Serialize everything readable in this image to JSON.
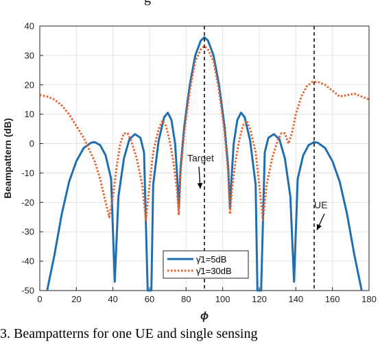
{
  "page": {
    "title_fragment": "g",
    "caption_fragment": "3.  Beampatterns for one UE and single sensing"
  },
  "colors": {
    "series_5dB": "#1f6fb0",
    "series_30dB": "#e8602c",
    "axis": "#000000",
    "grid": "#e3e3e3"
  },
  "chart_data": {
    "type": "line",
    "xlabel": "ϕ",
    "ylabel": "Beampattern (dB)",
    "xlim": [
      0,
      180
    ],
    "ylim": [
      -50,
      40
    ],
    "xticks": [
      0,
      20,
      40,
      60,
      80,
      100,
      120,
      140,
      160,
      180
    ],
    "yticks": [
      40,
      30,
      20,
      10,
      0,
      -10,
      -20,
      -30,
      -40,
      -50
    ],
    "grid": true,
    "legend_position": "bottom-center",
    "vlines": [
      90,
      150
    ],
    "annotations": [
      {
        "text": "Target",
        "x": 90,
        "y": -6
      },
      {
        "text": "UE",
        "x": 150,
        "y": -22
      }
    ],
    "series": [
      {
        "name": "γ̄1=5dB",
        "style": "solid",
        "points": [
          [
            4,
            -50
          ],
          [
            8,
            -38
          ],
          [
            12,
            -24
          ],
          [
            16,
            -13
          ],
          [
            20,
            -6
          ],
          [
            24,
            -1.5
          ],
          [
            28,
            0.3
          ],
          [
            30,
            0.5
          ],
          [
            33,
            -0.5
          ],
          [
            36,
            -4
          ],
          [
            39,
            -12
          ],
          [
            41,
            -47
          ],
          [
            43,
            -18
          ],
          [
            46,
            -5
          ],
          [
            49,
            1.5
          ],
          [
            52,
            3.2
          ],
          [
            55,
            2
          ],
          [
            57,
            -3
          ],
          [
            59,
            -50
          ],
          [
            60,
            -50
          ],
          [
            61,
            -50
          ],
          [
            62,
            -14
          ],
          [
            65,
            1
          ],
          [
            68,
            9
          ],
          [
            70,
            10.5
          ],
          [
            72,
            8
          ],
          [
            74,
            0
          ],
          [
            75,
            -10
          ],
          [
            76,
            -22
          ],
          [
            77,
            -8
          ],
          [
            79,
            6
          ],
          [
            82,
            20
          ],
          [
            85,
            30
          ],
          [
            88,
            35
          ],
          [
            90,
            36.2
          ],
          [
            92,
            35
          ],
          [
            95,
            30
          ],
          [
            98,
            20
          ],
          [
            101,
            6
          ],
          [
            103,
            -8
          ],
          [
            104,
            -22
          ],
          [
            105,
            -10
          ],
          [
            106,
            0
          ],
          [
            108,
            8
          ],
          [
            110,
            10.5
          ],
          [
            112,
            9
          ],
          [
            115,
            1
          ],
          [
            118,
            -14
          ],
          [
            119,
            -50
          ],
          [
            120,
            -50
          ],
          [
            121,
            -50
          ],
          [
            123,
            -3
          ],
          [
            125,
            2
          ],
          [
            128,
            3.2
          ],
          [
            131,
            1.5
          ],
          [
            134,
            -5
          ],
          [
            137,
            -18
          ],
          [
            139,
            -47
          ],
          [
            141,
            -12
          ],
          [
            144,
            -4
          ],
          [
            147,
            -0.5
          ],
          [
            150,
            0.5
          ],
          [
            152,
            0.3
          ],
          [
            156,
            -1.5
          ],
          [
            160,
            -6
          ],
          [
            164,
            -13
          ],
          [
            168,
            -24
          ],
          [
            172,
            -38
          ],
          [
            176,
            -50
          ]
        ]
      },
      {
        "name": "γ̄1=30dB",
        "style": "dotted",
        "points": [
          [
            0,
            16.5
          ],
          [
            4,
            16
          ],
          [
            8,
            15
          ],
          [
            12,
            13
          ],
          [
            16,
            10
          ],
          [
            20,
            6
          ],
          [
            24,
            2
          ],
          [
            27,
            -2
          ],
          [
            30,
            -6
          ],
          [
            33,
            -12
          ],
          [
            36,
            -20
          ],
          [
            38,
            -25
          ],
          [
            40,
            -18
          ],
          [
            42,
            -8
          ],
          [
            44,
            0
          ],
          [
            46,
            3.5
          ],
          [
            48,
            3.5
          ],
          [
            50,
            1
          ],
          [
            53,
            -5
          ],
          [
            56,
            -14
          ],
          [
            58,
            -26
          ],
          [
            60,
            -14
          ],
          [
            62,
            -3
          ],
          [
            65,
            5
          ],
          [
            67,
            7.8
          ],
          [
            69,
            6
          ],
          [
            71,
            1
          ],
          [
            73,
            -6
          ],
          [
            75,
            -16
          ],
          [
            76,
            -24
          ],
          [
            77,
            -10
          ],
          [
            79,
            4
          ],
          [
            82,
            18
          ],
          [
            85,
            28
          ],
          [
            88,
            32
          ],
          [
            90,
            33.2
          ],
          [
            92,
            32
          ],
          [
            95,
            28
          ],
          [
            98,
            18
          ],
          [
            101,
            4
          ],
          [
            103,
            -10
          ],
          [
            104,
            -24
          ],
          [
            105,
            -16
          ],
          [
            107,
            -6
          ],
          [
            109,
            1
          ],
          [
            111,
            6
          ],
          [
            113,
            7.8
          ],
          [
            115,
            5
          ],
          [
            118,
            -3
          ],
          [
            120,
            -14
          ],
          [
            122,
            -26
          ],
          [
            124,
            -14
          ],
          [
            127,
            -5
          ],
          [
            130,
            1
          ],
          [
            132,
            3.5
          ],
          [
            134,
            3.5
          ],
          [
            136,
            0
          ],
          [
            138,
            4
          ],
          [
            140,
            10
          ],
          [
            143,
            16
          ],
          [
            146,
            19.5
          ],
          [
            149,
            21
          ],
          [
            152,
            21
          ],
          [
            156,
            20
          ],
          [
            160,
            18
          ],
          [
            164,
            16
          ],
          [
            168,
            16.5
          ],
          [
            172,
            17
          ],
          [
            176,
            16
          ],
          [
            180,
            15
          ]
        ]
      }
    ]
  }
}
